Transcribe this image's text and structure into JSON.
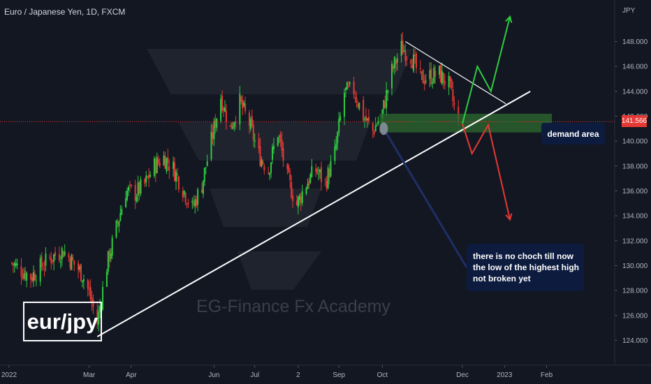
{
  "header": {
    "symbol_title": "Euro / Japanese Yen, 1D, FXCM"
  },
  "watermark": "EG-Finance Fx Academy",
  "pair_label": "eur/jpy",
  "price_axis": {
    "currency_label": "JPY",
    "ticks": [
      "148.000",
      "146.000",
      "144.000",
      "142.000",
      "140.000",
      "138.000",
      "136.000",
      "134.000",
      "132.000",
      "130.000",
      "128.000",
      "126.000",
      "124.000"
    ],
    "current_price": "141.566",
    "current_price_color": "#e53935"
  },
  "time_axis": {
    "ticks": [
      "2022",
      "Mar",
      "Apr",
      "Jun",
      "Jul",
      "2",
      "Sep",
      "Oct",
      "Dec",
      "2023",
      "Feb"
    ]
  },
  "annotations": {
    "demand_label": "demand area",
    "note_lines": [
      "there is no choch till now",
      "the low of the highest high",
      "not broken yet"
    ]
  },
  "colors": {
    "background": "#131722",
    "bull": "#2ecc40",
    "bear": "#e53935",
    "demand_zone": "#2e6b2f",
    "note_box": "#0d1b3e",
    "up_arrow": "#2ecc40",
    "down_arrow": "#e53935"
  },
  "chart_data": {
    "type": "candlestick",
    "title": "Euro / Japanese Yen, 1D, FXCM",
    "ylim": [
      122.9,
      150.2
    ],
    "y_unit": "JPY",
    "x_range": [
      "2022-01-01",
      "2023-02-28"
    ],
    "candles_close": [
      {
        "date": "2022-01-03",
        "close": 130.2
      },
      {
        "date": "2022-01-17",
        "close": 129.1
      },
      {
        "date": "2022-01-31",
        "close": 130.6
      },
      {
        "date": "2022-02-10",
        "close": 131.2
      },
      {
        "date": "2022-02-24",
        "close": 129.3
      },
      {
        "date": "2022-03-01",
        "close": 127.8
      },
      {
        "date": "2022-03-07",
        "close": 125.4
      },
      {
        "date": "2022-03-14",
        "close": 130.0
      },
      {
        "date": "2022-03-21",
        "close": 133.0
      },
      {
        "date": "2022-03-28",
        "close": 136.0
      },
      {
        "date": "2022-04-04",
        "close": 135.8
      },
      {
        "date": "2022-04-11",
        "close": 136.5
      },
      {
        "date": "2022-04-18",
        "close": 138.0
      },
      {
        "date": "2022-04-25",
        "close": 138.7
      },
      {
        "date": "2022-05-02",
        "close": 137.8
      },
      {
        "date": "2022-05-09",
        "close": 136.2
      },
      {
        "date": "2022-05-16",
        "close": 134.6
      },
      {
        "date": "2022-05-23",
        "close": 136.5
      },
      {
        "date": "2022-05-30",
        "close": 140.0
      },
      {
        "date": "2022-06-06",
        "close": 143.6
      },
      {
        "date": "2022-06-13",
        "close": 141.0
      },
      {
        "date": "2022-06-20",
        "close": 143.1
      },
      {
        "date": "2022-06-27",
        "close": 141.4
      },
      {
        "date": "2022-07-04",
        "close": 138.9
      },
      {
        "date": "2022-07-11",
        "close": 137.7
      },
      {
        "date": "2022-07-18",
        "close": 140.7
      },
      {
        "date": "2022-07-25",
        "close": 137.0
      },
      {
        "date": "2022-08-01",
        "close": 134.9
      },
      {
        "date": "2022-08-08",
        "close": 136.6
      },
      {
        "date": "2022-08-15",
        "close": 137.7
      },
      {
        "date": "2022-08-22",
        "close": 136.6
      },
      {
        "date": "2022-08-29",
        "close": 139.0
      },
      {
        "date": "2022-09-05",
        "close": 143.9
      },
      {
        "date": "2022-09-12",
        "close": 144.1
      },
      {
        "date": "2022-09-19",
        "close": 142.0
      },
      {
        "date": "2022-09-26",
        "close": 140.8
      },
      {
        "date": "2022-10-03",
        "close": 142.3
      },
      {
        "date": "2022-10-10",
        "close": 145.6
      },
      {
        "date": "2022-10-17",
        "close": 147.5
      },
      {
        "date": "2022-10-24",
        "close": 146.9
      },
      {
        "date": "2022-10-31",
        "close": 145.0
      },
      {
        "date": "2022-11-07",
        "close": 145.2
      },
      {
        "date": "2022-11-14",
        "close": 145.4
      },
      {
        "date": "2022-11-21",
        "close": 144.5
      },
      {
        "date": "2022-11-28",
        "close": 141.4
      }
    ],
    "trendline": {
      "from": {
        "date": "2022-03-07",
        "price": 124.3
      },
      "to": {
        "date": "2023-01-20",
        "price": 144.0
      }
    },
    "descending_line": {
      "from": {
        "date": "2022-10-20",
        "price": 148.0
      },
      "to": {
        "date": "2023-01-02",
        "price": 143.0
      }
    },
    "demand_zone": {
      "from_date": "2022-10-01",
      "to_date": "2023-01-05",
      "low": 140.7,
      "high": 142.2
    },
    "projection_up": [
      {
        "date": "2022-12-01",
        "price": 141.4
      },
      {
        "date": "2022-12-12",
        "price": 146.0
      },
      {
        "date": "2022-12-22",
        "price": 144.0
      },
      {
        "date": "2023-01-05",
        "price": 150.0
      }
    ],
    "projection_down": [
      {
        "date": "2022-12-01",
        "price": 141.4
      },
      {
        "date": "2022-12-08",
        "price": 139.0
      },
      {
        "date": "2022-12-20",
        "price": 141.3
      },
      {
        "date": "2023-01-05",
        "price": 133.7
      }
    ],
    "grid": false,
    "legend": "none"
  }
}
